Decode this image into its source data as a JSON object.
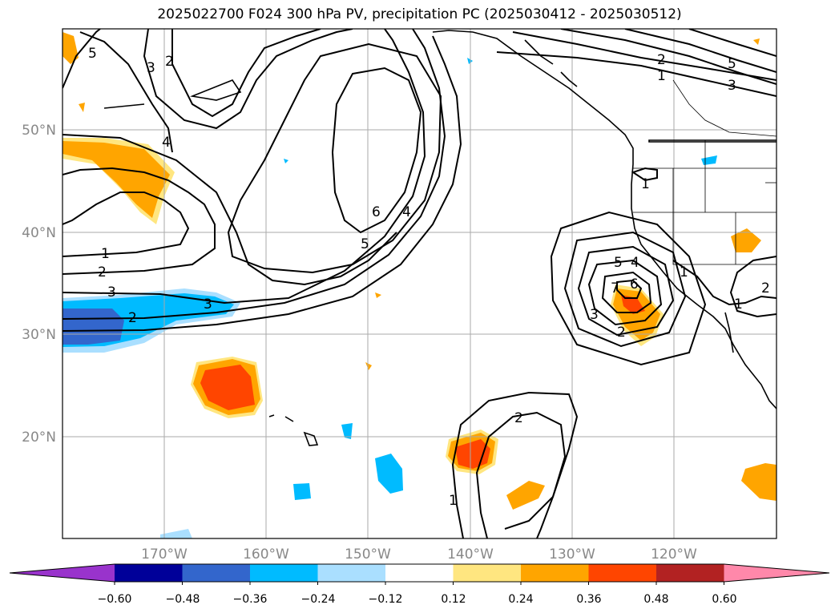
{
  "title": "2025022700 F024 300 hPa PV, precipitation PC (2025030412 - 2025030512)",
  "map": {
    "lat_ticks": [
      "50°N",
      "40°N",
      "30°N",
      "20°N"
    ],
    "lon_ticks": [
      "170°W",
      "160°W",
      "150°W",
      "140°W",
      "130°W",
      "120°W"
    ],
    "contour_labels": [
      "5",
      "3",
      "2",
      "4",
      "1",
      "2",
      "3",
      "6",
      "5",
      "4",
      "2",
      "1",
      "5",
      "3",
      "5",
      "4",
      "6",
      "7",
      "3",
      "2",
      "1",
      "1",
      "2",
      "1",
      "2",
      "1",
      "3",
      "2"
    ]
  },
  "colorbar": {
    "ticks": [
      "−0.60",
      "−0.48",
      "−0.36",
      "−0.24",
      "−0.12",
      "0.12",
      "0.24",
      "0.36",
      "0.48",
      "0.60"
    ],
    "colors": [
      "#9933cc",
      "#000099",
      "#3366cc",
      "#00bbff",
      "#aadfff",
      "#ffffff",
      "#ffe680",
      "#ffa500",
      "#ff4500",
      "#b22222",
      "#ff88aa"
    ]
  }
}
